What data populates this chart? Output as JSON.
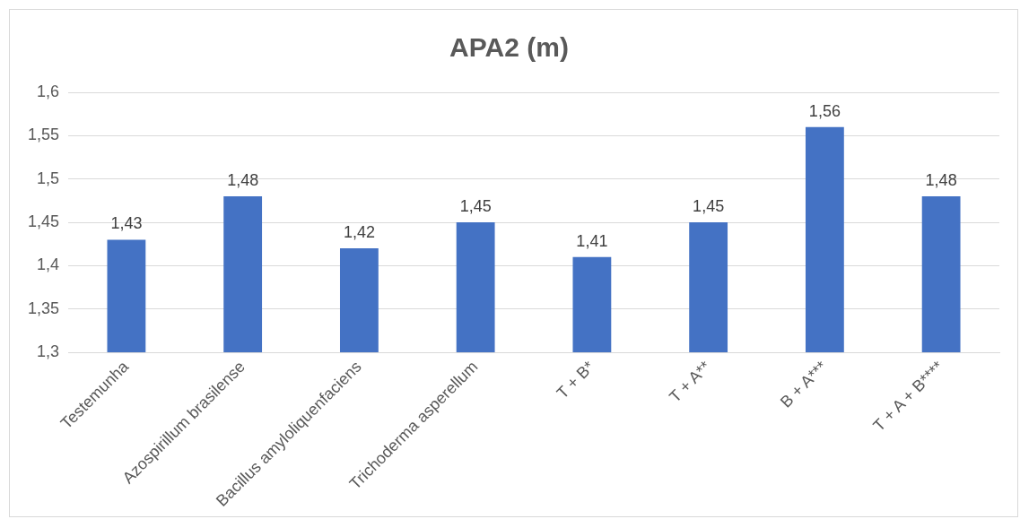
{
  "chart_data": {
    "type": "bar",
    "title": "APA2 (m)",
    "categories": [
      "Testemunha",
      "Azospirillum brasilense",
      "Bacillus amyloliquenfaciens",
      "Trichoderma asperellum",
      "T + B*",
      "T + A**",
      "B + A***",
      "T + A + B****"
    ],
    "values": [
      1.43,
      1.48,
      1.42,
      1.45,
      1.41,
      1.45,
      1.56,
      1.48
    ],
    "value_labels": [
      "1,43",
      "1,48",
      "1,42",
      "1,45",
      "1,41",
      "1,45",
      "1,56",
      "1,48"
    ],
    "color": "#4472c4",
    "ylim": [
      1.3,
      1.6
    ],
    "yticks": [
      {
        "value": 1.3,
        "label": "1,3"
      },
      {
        "value": 1.35,
        "label": "1,35"
      },
      {
        "value": 1.4,
        "label": "1,4"
      },
      {
        "value": 1.45,
        "label": "1,45"
      },
      {
        "value": 1.5,
        "label": "1,5"
      },
      {
        "value": 1.55,
        "label": "1,55"
      },
      {
        "value": 1.6,
        "label": "1,6"
      }
    ],
    "grid": "y"
  }
}
